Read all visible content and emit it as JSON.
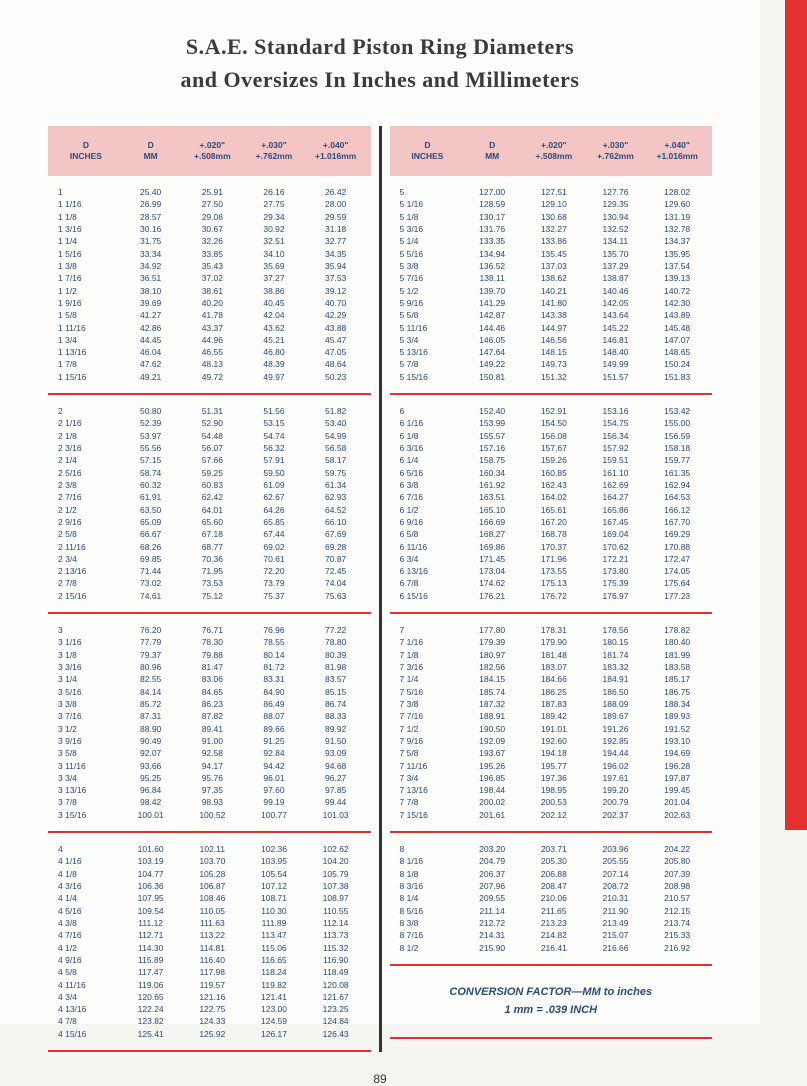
{
  "title_line1": "S.A.E. Standard Piston Ring Diameters",
  "title_line2": "and Oversizes In Inches and Millimeters",
  "page_number": "89",
  "headers": {
    "h1a": "D",
    "h1b": "INCHES",
    "h2a": "D",
    "h2b": "MM",
    "h3a": "+.020\"",
    "h3b": "+.508mm",
    "h4a": "+.030\"",
    "h4b": "+.762mm",
    "h5a": "+.040\"",
    "h5b": "+1.016mm"
  },
  "conversion_line1": "CONVERSION FACTOR—MM to inches",
  "conversion_line2": "1 mm = .039 INCH",
  "colors": {
    "red": "#e43030",
    "header_bg": "#f4c5c5",
    "text": "#2a4a7a"
  },
  "left_sections": [
    [
      [
        "1",
        "25.40",
        "25.91",
        "26.16",
        "26.42"
      ],
      [
        "1 1/16",
        "26.99",
        "27.50",
        "27.75",
        "28.00"
      ],
      [
        "1 1/8",
        "28.57",
        "29.08",
        "29.34",
        "29.59"
      ],
      [
        "1 3/16",
        "30.16",
        "30.67",
        "30.92",
        "31.18"
      ],
      [
        "1 1/4",
        "31.75",
        "32.26",
        "32.51",
        "32.77"
      ],
      [
        "1 5/16",
        "33.34",
        "33.85",
        "34.10",
        "34.35"
      ],
      [
        "1 3/8",
        "34.92",
        "35.43",
        "35.69",
        "35.94"
      ],
      [
        "1 7/16",
        "36.51",
        "37.02",
        "37.27",
        "37.53"
      ],
      [
        "1 1/2",
        "38.10",
        "38.61",
        "38.86",
        "39.12"
      ],
      [
        "1 9/16",
        "39.69",
        "40.20",
        "40.45",
        "40.70"
      ],
      [
        "1 5/8",
        "41.27",
        "41.78",
        "42.04",
        "42.29"
      ],
      [
        "1 11/16",
        "42.86",
        "43.37",
        "43.62",
        "43.88"
      ],
      [
        "1 3/4",
        "44.45",
        "44.96",
        "45.21",
        "45.47"
      ],
      [
        "1 13/16",
        "46.04",
        "46.55",
        "46.80",
        "47.05"
      ],
      [
        "1 7/8",
        "47.62",
        "48.13",
        "48.39",
        "48.64"
      ],
      [
        "1 15/16",
        "49.21",
        "49.72",
        "49.97",
        "50.23"
      ]
    ],
    [
      [
        "2",
        "50.80",
        "51.31",
        "51.56",
        "51.82"
      ],
      [
        "2 1/16",
        "52.39",
        "52.90",
        "53.15",
        "53.40"
      ],
      [
        "2 1/8",
        "53.97",
        "54.48",
        "54.74",
        "54.99"
      ],
      [
        "2 3/16",
        "55.56",
        "56.07",
        "56.32",
        "56.58"
      ],
      [
        "2 1/4",
        "57.15",
        "57.66",
        "57.91",
        "58.17"
      ],
      [
        "2 5/16",
        "58.74",
        "59.25",
        "59.50",
        "59.75"
      ],
      [
        "2 3/8",
        "60.32",
        "60.83",
        "61.09",
        "61.34"
      ],
      [
        "2 7/16",
        "61.91",
        "62.42",
        "62.67",
        "62.93"
      ],
      [
        "2 1/2",
        "63.50",
        "64.01",
        "64.26",
        "64.52"
      ],
      [
        "2 9/16",
        "65.09",
        "65.60",
        "65.85",
        "66.10"
      ],
      [
        "2 5/8",
        "66.67",
        "67.18",
        "67.44",
        "67.69"
      ],
      [
        "2 11/16",
        "68.26",
        "68.77",
        "69.02",
        "69.28"
      ],
      [
        "2 3/4",
        "69.85",
        "70.36",
        "70.61",
        "70.87"
      ],
      [
        "2 13/16",
        "71.44",
        "71.95",
        "72.20",
        "72.45"
      ],
      [
        "2 7/8",
        "73.02",
        "73.53",
        "73.79",
        "74.04"
      ],
      [
        "2 15/16",
        "74.61",
        "75.12",
        "75.37",
        "75.63"
      ]
    ],
    [
      [
        "3",
        "76.20",
        "76.71",
        "76.96",
        "77.22"
      ],
      [
        "3 1/16",
        "77.79",
        "78.30",
        "78.55",
        "78.80"
      ],
      [
        "3 1/8",
        "79.37",
        "79.88",
        "80.14",
        "80.39"
      ],
      [
        "3 3/16",
        "80.96",
        "81.47",
        "81.72",
        "81.98"
      ],
      [
        "3 1/4",
        "82.55",
        "83.06",
        "83.31",
        "83.57"
      ],
      [
        "3 5/16",
        "84.14",
        "84.65",
        "84.90",
        "85.15"
      ],
      [
        "3 3/8",
        "85.72",
        "86.23",
        "86.49",
        "86.74"
      ],
      [
        "3 7/16",
        "87.31",
        "87.82",
        "88.07",
        "88.33"
      ],
      [
        "3 1/2",
        "88.90",
        "89.41",
        "89.66",
        "89.92"
      ],
      [
        "3 9/16",
        "90.49",
        "91.00",
        "91.25",
        "91.50"
      ],
      [
        "3 5/8",
        "92.07",
        "92.58",
        "92.84",
        "93.09"
      ],
      [
        "3 11/16",
        "93.66",
        "94.17",
        "94.42",
        "94.68"
      ],
      [
        "3 3/4",
        "95.25",
        "95.76",
        "96.01",
        "96.27"
      ],
      [
        "3 13/16",
        "96.84",
        "97.35",
        "97.60",
        "97.85"
      ],
      [
        "3 7/8",
        "98.42",
        "98.93",
        "99.19",
        "99.44"
      ],
      [
        "3 15/16",
        "100.01",
        "100.52",
        "100.77",
        "101.03"
      ]
    ],
    [
      [
        "4",
        "101.60",
        "102.11",
        "102.36",
        "102.62"
      ],
      [
        "4 1/16",
        "103.19",
        "103.70",
        "103.95",
        "104.20"
      ],
      [
        "4 1/8",
        "104.77",
        "105.28",
        "105.54",
        "105.79"
      ],
      [
        "4 3/16",
        "106.36",
        "106.87",
        "107.12",
        "107.38"
      ],
      [
        "4 1/4",
        "107.95",
        "108.46",
        "108.71",
        "108.97"
      ],
      [
        "4 5/16",
        "109.54",
        "110.05",
        "110.30",
        "110.55"
      ],
      [
        "4 3/8",
        "111.12",
        "111.63",
        "111.89",
        "112.14"
      ],
      [
        "4 7/16",
        "112.71",
        "113.22",
        "113.47",
        "113.73"
      ],
      [
        "4 1/2",
        "114.30",
        "114.81",
        "115.06",
        "115.32"
      ],
      [
        "4 9/16",
        "115.89",
        "116.40",
        "116.65",
        "116.90"
      ],
      [
        "4 5/8",
        "117.47",
        "117.98",
        "118.24",
        "118.49"
      ],
      [
        "4 11/16",
        "119.06",
        "119.57",
        "119.82",
        "120.08"
      ],
      [
        "4 3/4",
        "120.65",
        "121.16",
        "121.41",
        "121.67"
      ],
      [
        "4 13/16",
        "122.24",
        "122.75",
        "123.00",
        "123.25"
      ],
      [
        "4 7/8",
        "123.82",
        "124.33",
        "124.59",
        "124.84"
      ],
      [
        "4 15/16",
        "125.41",
        "125.92",
        "126.17",
        "126.43"
      ]
    ]
  ],
  "right_sections": [
    [
      [
        "5",
        "127.00",
        "127.51",
        "127.76",
        "128.02"
      ],
      [
        "5 1/16",
        "128.59",
        "129.10",
        "129.35",
        "129.60"
      ],
      [
        "5 1/8",
        "130.17",
        "130.68",
        "130.94",
        "131.19"
      ],
      [
        "5 3/16",
        "131.76",
        "132.27",
        "132.52",
        "132.78"
      ],
      [
        "5 1/4",
        "133.35",
        "133.86",
        "134.11",
        "134.37"
      ],
      [
        "5 5/16",
        "134.94",
        "135.45",
        "135.70",
        "135.95"
      ],
      [
        "5 3/8",
        "136.52",
        "137.03",
        "137.29",
        "137.54"
      ],
      [
        "5 7/16",
        "138.11",
        "138.62",
        "138.87",
        "139.13"
      ],
      [
        "5 1/2",
        "139.70",
        "140.21",
        "140.46",
        "140.72"
      ],
      [
        "5 9/16",
        "141.29",
        "141.80",
        "142.05",
        "142.30"
      ],
      [
        "5 5/8",
        "142.87",
        "143.38",
        "143.64",
        "143.89"
      ],
      [
        "5 11/16",
        "144.46",
        "144.97",
        "145.22",
        "145.48"
      ],
      [
        "5 3/4",
        "146.05",
        "146.56",
        "146.81",
        "147.07"
      ],
      [
        "5 13/16",
        "147.64",
        "148.15",
        "148.40",
        "148.65"
      ],
      [
        "5 7/8",
        "149.22",
        "149.73",
        "149.99",
        "150.24"
      ],
      [
        "5 15/16",
        "150.81",
        "151.32",
        "151.57",
        "151.83"
      ]
    ],
    [
      [
        "6",
        "152.40",
        "152.91",
        "153.16",
        "153.42"
      ],
      [
        "6 1/16",
        "153.99",
        "154.50",
        "154.75",
        "155.00"
      ],
      [
        "6 1/8",
        "155.57",
        "156.08",
        "156.34",
        "156.59"
      ],
      [
        "6 3/16",
        "157.16",
        "157.67",
        "157.92",
        "158.18"
      ],
      [
        "6 1/4",
        "158.75",
        "159.26",
        "159.51",
        "159.77"
      ],
      [
        "6 5/16",
        "160.34",
        "160.85",
        "161.10",
        "161.35"
      ],
      [
        "6 3/8",
        "161.92",
        "162.43",
        "162.69",
        "162.94"
      ],
      [
        "6 7/16",
        "163.51",
        "164.02",
        "164.27",
        "164.53"
      ],
      [
        "6 1/2",
        "165.10",
        "165.61",
        "165.86",
        "166.12"
      ],
      [
        "6 9/16",
        "166.69",
        "167.20",
        "167.45",
        "167.70"
      ],
      [
        "6 5/8",
        "168.27",
        "168.78",
        "169.04",
        "169.29"
      ],
      [
        "6 11/16",
        "169.86",
        "170.37",
        "170.62",
        "170.88"
      ],
      [
        "6 3/4",
        "171.45",
        "171.96",
        "172.21",
        "172.47"
      ],
      [
        "6 13/16",
        "173.04",
        "173.55",
        "173.80",
        "174.05"
      ],
      [
        "6 7/8",
        "174.62",
        "175.13",
        "175.39",
        "175.64"
      ],
      [
        "6 15/16",
        "176.21",
        "176.72",
        "176.97",
        "177.23"
      ]
    ],
    [
      [
        "7",
        "177.80",
        "178.31",
        "178.56",
        "178.82"
      ],
      [
        "7 1/16",
        "179.39",
        "179.90",
        "180.15",
        "180.40"
      ],
      [
        "7 1/8",
        "180.97",
        "181.48",
        "181.74",
        "181.99"
      ],
      [
        "7 3/16",
        "182.56",
        "183.07",
        "183.32",
        "183.58"
      ],
      [
        "7 1/4",
        "184.15",
        "184.66",
        "184.91",
        "185.17"
      ],
      [
        "7 5/16",
        "185.74",
        "186.25",
        "186.50",
        "186.75"
      ],
      [
        "7 3/8",
        "187.32",
        "187.83",
        "188.09",
        "188.34"
      ],
      [
        "7 7/16",
        "188.91",
        "189.42",
        "189.67",
        "189.93"
      ],
      [
        "7 1/2",
        "190.50",
        "191.01",
        "191.26",
        "191.52"
      ],
      [
        "7 9/16",
        "192.09",
        "192.60",
        "192.85",
        "193.10"
      ],
      [
        "7 5/8",
        "193.67",
        "194.18",
        "194.44",
        "194.69"
      ],
      [
        "7 11/16",
        "195.26",
        "195.77",
        "196.02",
        "196.28"
      ],
      [
        "7 3/4",
        "196.85",
        "197.36",
        "197.61",
        "197.87"
      ],
      [
        "7 13/16",
        "198.44",
        "198.95",
        "199.20",
        "199.45"
      ],
      [
        "7 7/8",
        "200.02",
        "200.53",
        "200.79",
        "201.04"
      ],
      [
        "7 15/16",
        "201.61",
        "202.12",
        "202.37",
        "202.63"
      ]
    ],
    [
      [
        "8",
        "203.20",
        "203.71",
        "203.96",
        "204.22"
      ],
      [
        "8 1/16",
        "204.79",
        "205.30",
        "205.55",
        "205.80"
      ],
      [
        "8 1/8",
        "206.37",
        "206.88",
        "207.14",
        "207.39"
      ],
      [
        "8 3/16",
        "207.96",
        "208.47",
        "208.72",
        "208.98"
      ],
      [
        "8 1/4",
        "209.55",
        "210.06",
        "210.31",
        "210.57"
      ],
      [
        "8 5/16",
        "211.14",
        "211.65",
        "211.90",
        "212.15"
      ],
      [
        "8 3/8",
        "212.72",
        "213.23",
        "213.49",
        "213.74"
      ],
      [
        "8 7/16",
        "214.31",
        "214.82",
        "215.07",
        "215.33"
      ],
      [
        "8 1/2",
        "215.90",
        "216.41",
        "216.66",
        "216.92"
      ]
    ]
  ]
}
